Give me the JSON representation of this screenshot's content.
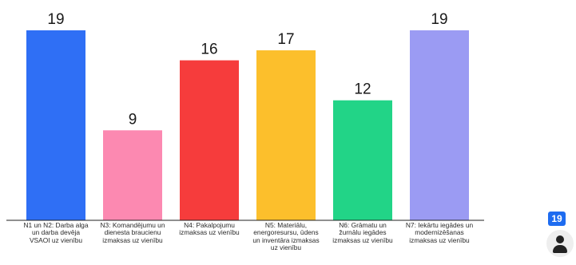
{
  "chart_data": {
    "type": "bar",
    "categories": [
      "N1 un N2: Darba alga un darba devēja VSAOI uz vienību",
      "N3: Komandējumu un dienesta braucienu izmaksas uz vienību",
      "N4: Pakalpojumu izmaksas uz vienību",
      "N5: Materiālu, energoresursu, ūdens un inventāra izmaksas uz vienību",
      "N6: Grāmatu un žurnālu iegādes izmaksas uz vienību",
      "N7: Iekārtu iegādes un modernizēšanas izmaksas uz vienību"
    ],
    "values": [
      19,
      9,
      16,
      17,
      12,
      19
    ],
    "data_labels": [
      "19",
      "9",
      "16",
      "17",
      "12",
      "19"
    ],
    "colors": [
      "#2f6ff5",
      "#fc89b1",
      "#f63c3c",
      "#fcbf2c",
      "#22d487",
      "#9b9bf3"
    ],
    "ylim": [
      0,
      20
    ],
    "grid": false,
    "title": "",
    "xlabel": "",
    "ylabel": ""
  },
  "overlay": {
    "badge_count": "19",
    "icon": "user-icon"
  }
}
